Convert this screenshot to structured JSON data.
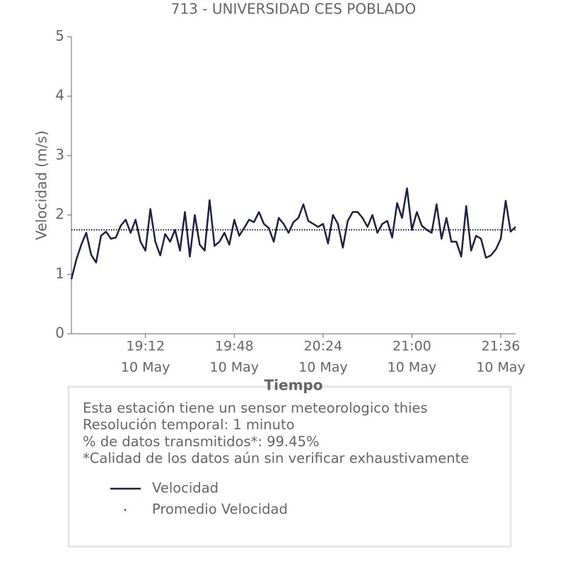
{
  "chart_data": {
    "type": "line",
    "title": "713 - UNIVERSIDAD CES POBLADO",
    "ylabel": "Velocidad (m/s)",
    "xlabel": "Tiempo",
    "x": [
      "18:42",
      "18:44",
      "18:46",
      "18:48",
      "18:50",
      "18:52",
      "18:54",
      "18:56",
      "18:58",
      "19:00",
      "19:02",
      "19:04",
      "19:06",
      "19:08",
      "19:10",
      "19:12",
      "19:14",
      "19:16",
      "19:18",
      "19:20",
      "19:22",
      "19:24",
      "19:26",
      "19:28",
      "19:30",
      "19:32",
      "19:34",
      "19:36",
      "19:38",
      "19:40",
      "19:42",
      "19:44",
      "19:46",
      "19:48",
      "19:50",
      "19:52",
      "19:54",
      "19:56",
      "19:58",
      "20:00",
      "20:02",
      "20:04",
      "20:06",
      "20:08",
      "20:10",
      "20:12",
      "20:14",
      "20:16",
      "20:18",
      "20:20",
      "20:22",
      "20:24",
      "20:26",
      "20:28",
      "20:30",
      "20:32",
      "20:34",
      "20:36",
      "20:38",
      "20:40",
      "20:42",
      "20:44",
      "20:46",
      "20:48",
      "20:50",
      "20:52",
      "20:54",
      "20:56",
      "20:58",
      "21:00",
      "21:02",
      "21:04",
      "21:06",
      "21:08",
      "21:10",
      "21:12",
      "21:14",
      "21:16",
      "21:18",
      "21:20",
      "21:22",
      "21:24",
      "21:26",
      "21:28",
      "21:30",
      "21:32",
      "21:34",
      "21:36",
      "21:38",
      "21:40",
      "21:42"
    ],
    "series": [
      {
        "name": "Velocidad",
        "color": "#1f2144",
        "values": [
          0.92,
          1.25,
          1.5,
          1.7,
          1.33,
          1.2,
          1.65,
          1.72,
          1.6,
          1.62,
          1.82,
          1.92,
          1.7,
          1.92,
          1.55,
          1.4,
          2.1,
          1.55,
          1.32,
          1.68,
          1.55,
          1.75,
          1.4,
          2.05,
          1.3,
          2.0,
          1.5,
          1.4,
          2.25,
          1.48,
          1.55,
          1.7,
          1.5,
          1.92,
          1.65,
          1.78,
          1.92,
          1.88,
          2.05,
          1.85,
          1.78,
          1.55,
          1.95,
          1.85,
          1.7,
          1.88,
          1.95,
          2.18,
          1.9,
          1.85,
          1.8,
          1.85,
          1.52,
          2.0,
          1.85,
          1.45,
          1.9,
          2.05,
          2.05,
          1.95,
          1.8,
          2.0,
          1.7,
          1.85,
          1.9,
          1.62,
          2.2,
          1.95,
          2.45,
          1.75,
          2.05,
          1.82,
          1.75,
          1.7,
          2.18,
          1.6,
          1.95,
          1.55,
          1.55,
          1.3,
          2.15,
          1.4,
          1.65,
          1.6,
          1.28,
          1.32,
          1.42,
          1.6,
          2.24,
          1.72,
          1.8
        ]
      },
      {
        "name": "Promedio Velocidad",
        "color": "#1f2144",
        "style": "dotted",
        "value": 1.75
      }
    ],
    "xlim": [
      "18:42",
      "21:42"
    ],
    "xticks": [
      {
        "value": "19:12",
        "date": "10 May"
      },
      {
        "value": "19:48",
        "date": "10 May"
      },
      {
        "value": "20:24",
        "date": "10 May"
      },
      {
        "value": "21:00",
        "date": "10 May"
      },
      {
        "value": "21:36",
        "date": "10 May"
      }
    ],
    "ylim": [
      0,
      5
    ],
    "yticks": [
      0,
      1,
      2,
      3,
      4,
      5
    ],
    "grid": false,
    "notes": [
      "Esta estación tiene un sensor meteorologico thies",
      "Resolución temporal: 1 minuto",
      "% de datos transmitidos*: 99.45%",
      "*Calidad de los datos aún sin verificar exhaustivamente"
    ]
  }
}
